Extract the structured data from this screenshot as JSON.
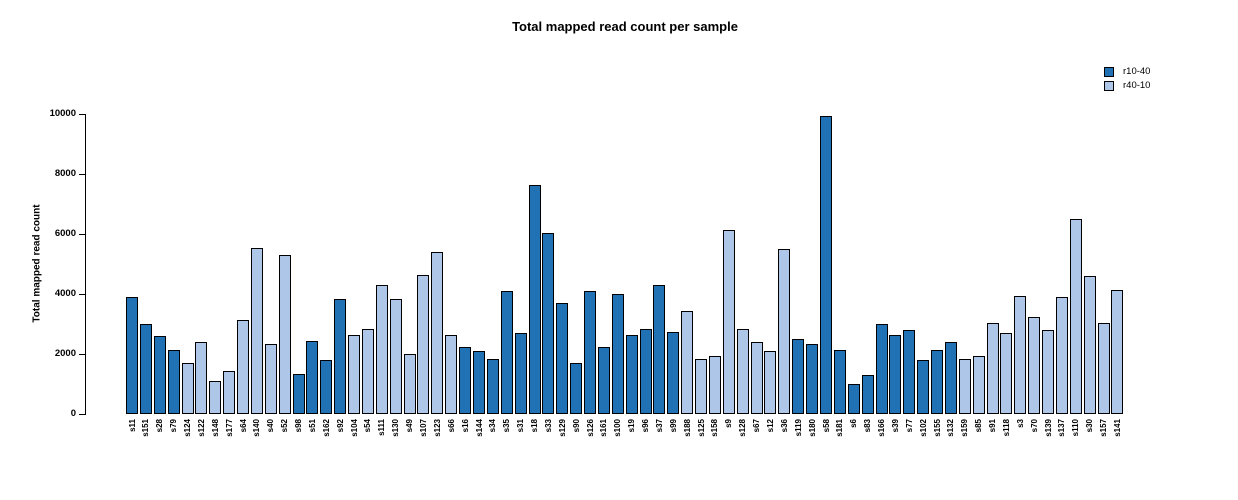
{
  "chart_data": {
    "type": "bar",
    "title": "Total mapped read count per sample",
    "xlabel": "",
    "ylabel": "Total mapped read count",
    "ylim": [
      0,
      10000
    ],
    "yticks": [
      0,
      2000,
      4000,
      6000,
      8000,
      10000
    ],
    "grid": false,
    "legend_position": "top-right",
    "legend": [
      "r10-40",
      "r40-10"
    ],
    "series_colors": {
      "r10-40": "#2171B5",
      "r40-10": "#AEC7E8"
    },
    "bar_border_color": "#000000",
    "samples": [
      {
        "name": "s11",
        "value": 3900,
        "series": "r10-40"
      },
      {
        "name": "s151",
        "value": 3000,
        "series": "r10-40"
      },
      {
        "name": "s28",
        "value": 2600,
        "series": "r10-40"
      },
      {
        "name": "s79",
        "value": 2150,
        "series": "r10-40"
      },
      {
        "name": "s124",
        "value": 1700,
        "series": "r40-10"
      },
      {
        "name": "s122",
        "value": 2400,
        "series": "r40-10"
      },
      {
        "name": "s148",
        "value": 1100,
        "series": "r40-10"
      },
      {
        "name": "s177",
        "value": 1450,
        "series": "r40-10"
      },
      {
        "name": "s64",
        "value": 3150,
        "series": "r40-10"
      },
      {
        "name": "s140",
        "value": 5550,
        "series": "r40-10"
      },
      {
        "name": "s40",
        "value": 2350,
        "series": "r40-10"
      },
      {
        "name": "s52",
        "value": 5300,
        "series": "r40-10"
      },
      {
        "name": "s98",
        "value": 1350,
        "series": "r10-40"
      },
      {
        "name": "s51",
        "value": 2450,
        "series": "r10-40"
      },
      {
        "name": "s162",
        "value": 1800,
        "series": "r10-40"
      },
      {
        "name": "s92",
        "value": 3850,
        "series": "r10-40"
      },
      {
        "name": "s104",
        "value": 2650,
        "series": "r40-10"
      },
      {
        "name": "s54",
        "value": 2850,
        "series": "r40-10"
      },
      {
        "name": "s111",
        "value": 4300,
        "series": "r40-10"
      },
      {
        "name": "s130",
        "value": 3850,
        "series": "r40-10"
      },
      {
        "name": "s49",
        "value": 2000,
        "series": "r40-10"
      },
      {
        "name": "s107",
        "value": 4650,
        "series": "r40-10"
      },
      {
        "name": "s123",
        "value": 5400,
        "series": "r40-10"
      },
      {
        "name": "s66",
        "value": 2650,
        "series": "r40-10"
      },
      {
        "name": "s16",
        "value": 2250,
        "series": "r10-40"
      },
      {
        "name": "s144",
        "value": 2100,
        "series": "r10-40"
      },
      {
        "name": "s34",
        "value": 1850,
        "series": "r10-40"
      },
      {
        "name": "s35",
        "value": 4100,
        "series": "r10-40"
      },
      {
        "name": "s31",
        "value": 2700,
        "series": "r10-40"
      },
      {
        "name": "s18",
        "value": 7650,
        "series": "r10-40"
      },
      {
        "name": "s33",
        "value": 6050,
        "series": "r10-40"
      },
      {
        "name": "s129",
        "value": 3700,
        "series": "r10-40"
      },
      {
        "name": "s90",
        "value": 1700,
        "series": "r10-40"
      },
      {
        "name": "s126",
        "value": 4100,
        "series": "r10-40"
      },
      {
        "name": "s161",
        "value": 2250,
        "series": "r10-40"
      },
      {
        "name": "s100",
        "value": 4000,
        "series": "r10-40"
      },
      {
        "name": "s19",
        "value": 2650,
        "series": "r10-40"
      },
      {
        "name": "s96",
        "value": 2850,
        "series": "r10-40"
      },
      {
        "name": "s37",
        "value": 4300,
        "series": "r10-40"
      },
      {
        "name": "s99",
        "value": 2750,
        "series": "r10-40"
      },
      {
        "name": "s188",
        "value": 3450,
        "series": "r40-10"
      },
      {
        "name": "s125",
        "value": 1850,
        "series": "r40-10"
      },
      {
        "name": "s158",
        "value": 1950,
        "series": "r40-10"
      },
      {
        "name": "s9",
        "value": 6150,
        "series": "r40-10"
      },
      {
        "name": "s128",
        "value": 2850,
        "series": "r40-10"
      },
      {
        "name": "s67",
        "value": 2400,
        "series": "r40-10"
      },
      {
        "name": "s12",
        "value": 2100,
        "series": "r40-10"
      },
      {
        "name": "s36",
        "value": 5500,
        "series": "r40-10"
      },
      {
        "name": "s119",
        "value": 2500,
        "series": "r10-40"
      },
      {
        "name": "s180",
        "value": 2350,
        "series": "r10-40"
      },
      {
        "name": "s58",
        "value": 9950,
        "series": "r10-40"
      },
      {
        "name": "s181",
        "value": 2150,
        "series": "r10-40"
      },
      {
        "name": "s6",
        "value": 1000,
        "series": "r10-40"
      },
      {
        "name": "s83",
        "value": 1300,
        "series": "r10-40"
      },
      {
        "name": "s166",
        "value": 3000,
        "series": "r10-40"
      },
      {
        "name": "s39",
        "value": 2650,
        "series": "r10-40"
      },
      {
        "name": "s77",
        "value": 2800,
        "series": "r10-40"
      },
      {
        "name": "s102",
        "value": 1800,
        "series": "r10-40"
      },
      {
        "name": "s155",
        "value": 2150,
        "series": "r10-40"
      },
      {
        "name": "s132",
        "value": 2400,
        "series": "r10-40"
      },
      {
        "name": "s159",
        "value": 1850,
        "series": "r40-10"
      },
      {
        "name": "s85",
        "value": 1950,
        "series": "r40-10"
      },
      {
        "name": "s91",
        "value": 3050,
        "series": "r40-10"
      },
      {
        "name": "s118",
        "value": 2700,
        "series": "r40-10"
      },
      {
        "name": "s3",
        "value": 3950,
        "series": "r40-10"
      },
      {
        "name": "s70",
        "value": 3250,
        "series": "r40-10"
      },
      {
        "name": "s139",
        "value": 2800,
        "series": "r40-10"
      },
      {
        "name": "s137",
        "value": 3900,
        "series": "r40-10"
      },
      {
        "name": "s110",
        "value": 6500,
        "series": "r40-10"
      },
      {
        "name": "s30",
        "value": 4600,
        "series": "r40-10"
      },
      {
        "name": "s157",
        "value": 3050,
        "series": "r40-10"
      },
      {
        "name": "s141",
        "value": 4150,
        "series": "r40-10"
      }
    ]
  }
}
